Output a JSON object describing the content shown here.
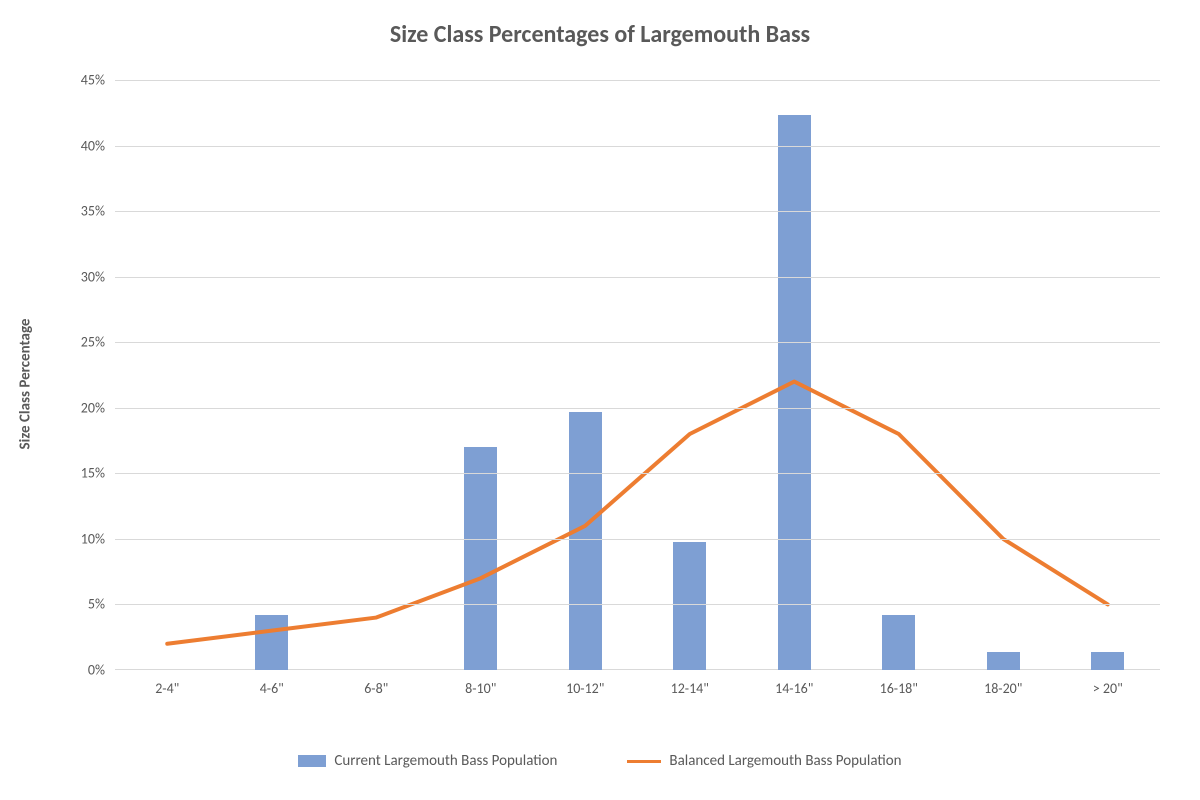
{
  "chart": {
    "type": "bar+line",
    "title": "Size Class Percentages of Largemouth Bass",
    "title_fontsize": 24,
    "title_color": "#595959",
    "ylabel": "Size Class Percentage",
    "ylabel_fontsize": 15,
    "ylabel_color": "#595959",
    "background_color": "#ffffff",
    "grid_color": "#d9d9d9",
    "tick_fontsize": 14,
    "tick_color": "#595959",
    "categories": [
      "2-4\"",
      "4-6\"",
      "6-8\"",
      "8-10\"",
      "10-12\"",
      "12-14\"",
      "14-16\"",
      "16-18\"",
      "18-20\"",
      "> 20\""
    ],
    "ylim": [
      0,
      45
    ],
    "ytick_step": 5,
    "ytick_labels": [
      "0%",
      "5%",
      "10%",
      "15%",
      "20%",
      "25%",
      "30%",
      "35%",
      "40%",
      "45%"
    ],
    "bar_series": {
      "name": "Current Largemouth Bass Population",
      "color": "#7e9fd3",
      "values": [
        0,
        4.2,
        0,
        17.0,
        19.7,
        9.8,
        42.3,
        4.2,
        1.4,
        1.4
      ],
      "bar_width_ratio": 0.32
    },
    "line_series": {
      "name": "Balanced Largemouth Bass Population",
      "color": "#ed7d31",
      "stroke_width": 4,
      "values": [
        2.0,
        3.0,
        4.0,
        7.0,
        11.0,
        18.0,
        22.0,
        18.0,
        10.0,
        5.0
      ]
    },
    "legend": {
      "fontsize": 15,
      "position": "bottom"
    }
  }
}
